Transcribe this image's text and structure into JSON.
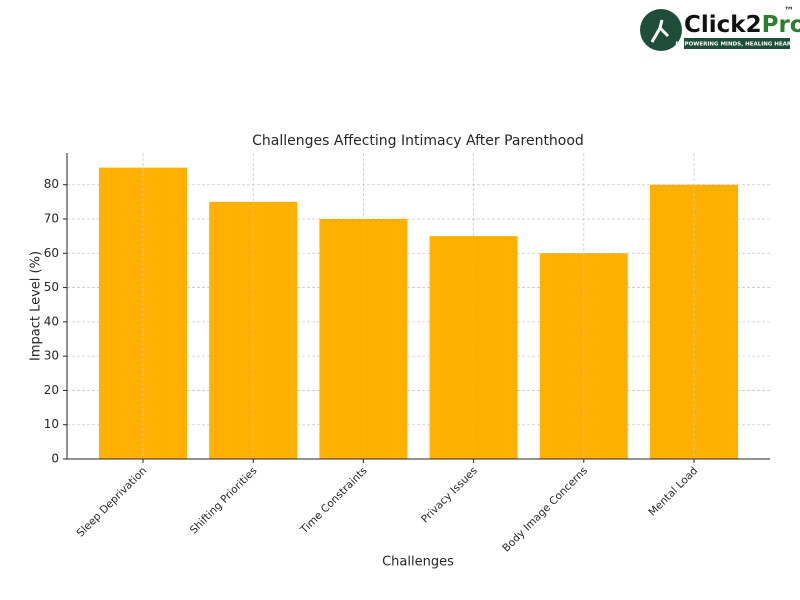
{
  "logo": {
    "brand_1": "Click2",
    "brand_2": "Pro",
    "tm": "™",
    "tagline": "EMPOWERING MINDS, HEALING HEARTS"
  },
  "chart_data": {
    "type": "bar",
    "title": "Challenges Affecting Intimacy After Parenthood",
    "x_label": "Challenges",
    "y_label": "Impact Level (%)",
    "categories": [
      "Sleep Deprivation",
      "Shifting Priorities",
      "Time Constraints",
      "Privacy Issues",
      "Body Image Concerns",
      "Mental Load"
    ],
    "values": [
      85,
      75,
      70,
      65,
      60,
      80
    ],
    "color": "#ffb000",
    "ylim": [
      0,
      89.25
    ],
    "yticks": [
      0,
      10,
      20,
      30,
      40,
      50,
      60,
      70,
      80
    ],
    "grid": true
  }
}
